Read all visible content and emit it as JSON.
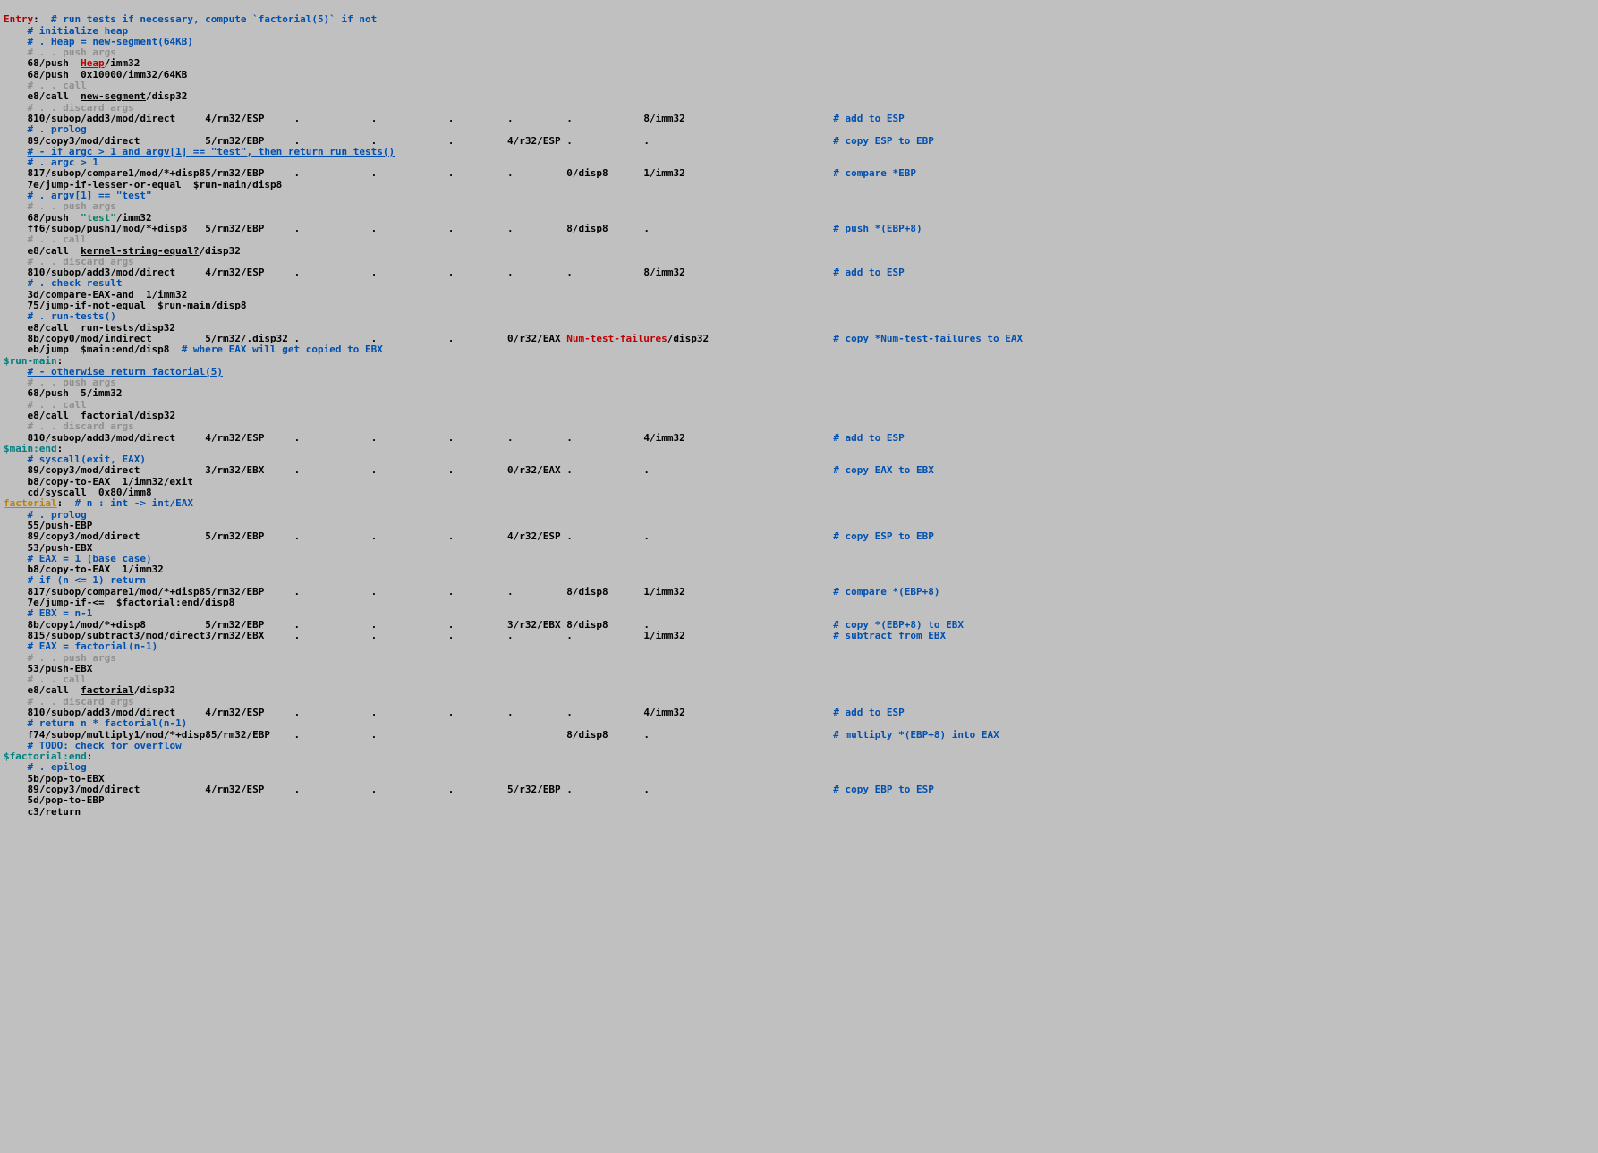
{
  "colors": {
    "label_red": "#b00000",
    "label_teal": "#008080",
    "label_orange": "#c08000",
    "comment_blue": "#0050b0",
    "comment_blue_ul": "#0050b0",
    "comment_gray": "#909090",
    "link": "#0050b0",
    "link_red": "#c00000",
    "black": "#000000",
    "str": "#008060",
    "bg": "#c0c0c0"
  },
  "cols": [
    0,
    2,
    11,
    34,
    49,
    62,
    75,
    85,
    95,
    108,
    123,
    140
  ],
  "lines": [
    [
      [
        "Entry",
        "label_red"
      ],
      [
        ":",
        "black"
      ],
      [
        "  ",
        "black"
      ],
      [
        "# run tests if necessary, compute `factorial(5)` if not",
        "comment_blue"
      ]
    ],
    [
      [
        "    ",
        "black"
      ],
      [
        "# initialize heap",
        "comment_blue"
      ]
    ],
    [
      [
        "    ",
        "black"
      ],
      [
        "# . Heap = new-segment(64KB)",
        "comment_blue"
      ]
    ],
    [
      [
        "    ",
        "black"
      ],
      [
        "# . . push args",
        "comment_gray"
      ]
    ],
    [
      [
        "    68/push  ",
        "black"
      ],
      [
        "Heap",
        "link_red",
        "ul"
      ],
      [
        "/imm32",
        "black"
      ]
    ],
    [
      [
        "    68/push  0x10000/imm32/64KB",
        "black"
      ]
    ],
    [
      [
        "    ",
        "black"
      ],
      [
        "# . . call",
        "comment_gray"
      ]
    ],
    [
      [
        "    e8/call  ",
        "black"
      ],
      [
        "new-segment",
        "black",
        "ul"
      ],
      [
        "/disp32",
        "black"
      ]
    ],
    [
      [
        "    ",
        "black"
      ],
      [
        "# . . discard args",
        "comment_gray"
      ]
    ],
    {
      "cells": {
        "0": "    81",
        "1": "0/subop/add",
        "2": "3/mod/direct",
        "3": "4/rm32/ESP",
        "4": ".",
        "5": ".",
        "6": ".",
        "7": ".",
        "8": ".",
        "9": "8/imm32"
      },
      "cmt": "# add to ESP"
    },
    [
      [
        "",
        "black"
      ]
    ],
    [
      [
        "    ",
        "black"
      ],
      [
        "# . prolog",
        "comment_blue"
      ]
    ],
    {
      "cells": {
        "0": "    89/copy",
        "2": "3/mod/direct",
        "3": "5/rm32/EBP",
        "4": ".",
        "5": ".",
        "6": ".",
        "7": "4/r32/ESP",
        "8": ".",
        "9": "."
      },
      "cmt": "# copy ESP to EBP"
    },
    [
      [
        "    ",
        "black"
      ],
      [
        "# - if argc > 1 and argv[1] == \"test\", then return run tests()",
        "comment_blue_ul",
        "ul"
      ]
    ],
    [
      [
        "    ",
        "black"
      ],
      [
        "# . argc > 1",
        "comment_blue"
      ]
    ],
    {
      "cells": {
        "0": "    81",
        "1": "7/subop/compare",
        "2": "1/mod/*+disp8",
        "3": "5/rm32/EBP",
        "4": ".",
        "5": ".",
        "6": ".",
        "7": ".",
        "8": "0/disp8",
        "9": "1/imm32"
      },
      "cmt": "# compare *EBP"
    },
    [
      [
        "    7e/jump-if-lesser-or-equal  $run-main/disp8",
        "black"
      ]
    ],
    [
      [
        "    ",
        "black"
      ],
      [
        "# . argv[1] == \"test\"",
        "comment_blue"
      ]
    ],
    [
      [
        "    ",
        "black"
      ],
      [
        "# . . push args",
        "comment_gray"
      ]
    ],
    [
      [
        "    68/push  ",
        "black"
      ],
      [
        "\"test\"",
        "str"
      ],
      [
        "/imm32",
        "black"
      ]
    ],
    {
      "cells": {
        "0": "    ff",
        "1": "6/subop/push",
        "2": "1/mod/*+disp8",
        "3": "5/rm32/EBP",
        "4": ".",
        "5": ".",
        "6": ".",
        "7": ".",
        "8": "8/disp8",
        "9": "."
      },
      "cmt": "# push *(EBP+8)"
    },
    [
      [
        "    ",
        "black"
      ],
      [
        "# . . call",
        "comment_gray"
      ]
    ],
    [
      [
        "    e8/call  ",
        "black"
      ],
      [
        "kernel-string-equal?",
        "black",
        "ul"
      ],
      [
        "/disp32",
        "black"
      ]
    ],
    [
      [
        "    ",
        "black"
      ],
      [
        "# . . discard args",
        "comment_gray"
      ]
    ],
    {
      "cells": {
        "0": "    81",
        "1": "0/subop/add",
        "2": "3/mod/direct",
        "3": "4/rm32/ESP",
        "4": ".",
        "5": ".",
        "6": ".",
        "7": ".",
        "8": ".",
        "9": "8/imm32"
      },
      "cmt": "# add to ESP"
    },
    [
      [
        "    ",
        "black"
      ],
      [
        "# . check result",
        "comment_blue"
      ]
    ],
    [
      [
        "    3d/compare-EAX-and  1/imm32",
        "black"
      ]
    ],
    [
      [
        "    75/jump-if-not-equal  $run-main/disp8",
        "black"
      ]
    ],
    [
      [
        "    ",
        "black"
      ],
      [
        "# . run-tests()",
        "comment_blue"
      ]
    ],
    [
      [
        "    e8/call  run-tests/disp32",
        "black"
      ]
    ],
    {
      "cells": {
        "0": "    8b/copy",
        "2": "0/mod/indirect",
        "3": "5/rm32/.disp32",
        "4": ".",
        "5": ".",
        "6": ".",
        "7": "0/r32/EAX",
        "8": [
          "Num-test-failures",
          "/disp32"
        ],
        "9": ""
      },
      "cmt": "# copy *Num-test-failures to EAX"
    },
    [
      [
        "    eb/jump  $main:end/disp8  ",
        "black"
      ],
      [
        "# where EAX will get copied to EBX",
        "comment_blue"
      ]
    ],
    [
      [
        "$run-main",
        "label_teal"
      ],
      [
        ":",
        "black"
      ]
    ],
    [
      [
        "    ",
        "black"
      ],
      [
        "# - otherwise return factorial(5)",
        "comment_blue_ul",
        "ul"
      ]
    ],
    [
      [
        "    ",
        "black"
      ],
      [
        "# . . push args",
        "comment_gray"
      ]
    ],
    [
      [
        "    68/push  5/imm32",
        "black"
      ]
    ],
    [
      [
        "    ",
        "black"
      ],
      [
        "# . . call",
        "comment_gray"
      ]
    ],
    [
      [
        "    e8/call  ",
        "black"
      ],
      [
        "factorial",
        "black",
        "ul"
      ],
      [
        "/disp32",
        "black"
      ]
    ],
    [
      [
        "    ",
        "black"
      ],
      [
        "# . . discard args",
        "comment_gray"
      ]
    ],
    {
      "cells": {
        "0": "    81",
        "1": "0/subop/add",
        "2": "3/mod/direct",
        "3": "4/rm32/ESP",
        "4": ".",
        "5": ".",
        "6": ".",
        "7": ".",
        "8": ".",
        "9": "4/imm32"
      },
      "cmt": "# add to ESP"
    },
    [
      [
        "$main:end",
        "label_teal"
      ],
      [
        ":",
        "black"
      ]
    ],
    [
      [
        "    ",
        "black"
      ],
      [
        "# syscall(exit, EAX)",
        "comment_blue"
      ]
    ],
    {
      "cells": {
        "0": "    89/copy",
        "2": "3/mod/direct",
        "3": "3/rm32/EBX",
        "4": ".",
        "5": ".",
        "6": ".",
        "7": "0/r32/EAX",
        "8": ".",
        "9": "."
      },
      "cmt": "# copy EAX to EBX"
    },
    [
      [
        "    b8/copy-to-EAX  1/imm32/exit",
        "black"
      ]
    ],
    [
      [
        "    cd/syscall  0x80/imm8",
        "black"
      ]
    ],
    [
      [
        "",
        "black"
      ]
    ],
    [
      [
        "factorial",
        "label_orange",
        "ul"
      ],
      [
        ":",
        "black"
      ],
      [
        "  ",
        "black"
      ],
      [
        "# n : int -> int/EAX",
        "comment_blue"
      ]
    ],
    [
      [
        "    ",
        "black"
      ],
      [
        "# . prolog",
        "comment_blue"
      ]
    ],
    [
      [
        "    55/push-EBP",
        "black"
      ]
    ],
    {
      "cells": {
        "0": "    89/copy",
        "2": "3/mod/direct",
        "3": "5/rm32/EBP",
        "4": ".",
        "5": ".",
        "6": ".",
        "7": "4/r32/ESP",
        "8": ".",
        "9": "."
      },
      "cmt": "# copy ESP to EBP"
    },
    [
      [
        "    53/push-EBX",
        "black"
      ]
    ],
    [
      [
        "    ",
        "black"
      ],
      [
        "# EAX = 1 (base case)",
        "comment_blue"
      ]
    ],
    [
      [
        "    b8/copy-to-EAX  1/imm32",
        "black"
      ]
    ],
    [
      [
        "    ",
        "black"
      ],
      [
        "# if (n <= 1) return",
        "comment_blue"
      ]
    ],
    {
      "cells": {
        "0": "    81",
        "1": "7/subop/compare",
        "2": "1/mod/*+disp8",
        "3": "5/rm32/EBP",
        "4": ".",
        "5": ".",
        "6": ".",
        "7": ".",
        "8": "8/disp8",
        "9": "1/imm32"
      },
      "cmt": "# compare *(EBP+8)"
    },
    [
      [
        "    7e/jump-if-<=  $factorial:end/disp8",
        "black"
      ]
    ],
    [
      [
        "    ",
        "black"
      ],
      [
        "# EBX = n-1",
        "comment_blue"
      ]
    ],
    {
      "cells": {
        "0": "    8b/copy",
        "2": "1/mod/*+disp8",
        "3": "5/rm32/EBP",
        "4": ".",
        "5": ".",
        "6": ".",
        "7": "3/r32/EBX",
        "8": "8/disp8",
        "9": "."
      },
      "cmt": "# copy *(EBP+8) to EBX"
    },
    {
      "cells": {
        "0": "    81",
        "1": "5/subop/subtract",
        "2": "3/mod/direct",
        "3": "3/rm32/EBX",
        "4": ".",
        "5": ".",
        "6": ".",
        "7": ".",
        "8": ".",
        "9": "1/imm32"
      },
      "cmt": "# subtract from EBX"
    },
    [
      [
        "    ",
        "black"
      ],
      [
        "# EAX = factorial(n-1)",
        "comment_blue"
      ]
    ],
    [
      [
        "    ",
        "black"
      ],
      [
        "# . . push args",
        "comment_gray"
      ]
    ],
    [
      [
        "    53/push-EBX",
        "black"
      ]
    ],
    [
      [
        "    ",
        "black"
      ],
      [
        "# . . call",
        "comment_gray"
      ]
    ],
    [
      [
        "    e8/call  ",
        "black"
      ],
      [
        "factorial",
        "black",
        "ul"
      ],
      [
        "/disp32",
        "black"
      ]
    ],
    [
      [
        "    ",
        "black"
      ],
      [
        "# . . discard args",
        "comment_gray"
      ]
    ],
    {
      "cells": {
        "0": "    81",
        "1": "0/subop/add",
        "2": "3/mod/direct",
        "3": "4/rm32/ESP",
        "4": ".",
        "5": ".",
        "6": ".",
        "7": ".",
        "8": ".",
        "9": "4/imm32"
      },
      "cmt": "# add to ESP"
    },
    [
      [
        "    ",
        "black"
      ],
      [
        "# return n * factorial(n-1)",
        "comment_blue"
      ]
    ],
    {
      "cells": {
        "0": "    f7",
        "1": "4/subop/multiply",
        "2": "1/mod/*+disp8",
        "3": "5/rm32/EBP",
        "4": ".",
        "5": ".",
        "7": "",
        "8": "8/disp8",
        "9": "."
      },
      "cmt": "# multiply *(EBP+8) into EAX"
    },
    [
      [
        "    ",
        "black"
      ],
      [
        "# TODO: check for overflow",
        "comment_blue"
      ]
    ],
    [
      [
        "$factorial:end",
        "label_teal"
      ],
      [
        ":",
        "black"
      ]
    ],
    [
      [
        "    ",
        "black"
      ],
      [
        "# . epilog",
        "comment_blue"
      ]
    ],
    [
      [
        "    5b/pop-to-EBX",
        "black"
      ]
    ],
    {
      "cells": {
        "0": "    89/copy",
        "2": "3/mod/direct",
        "3": "4/rm32/ESP",
        "4": ".",
        "5": ".",
        "6": ".",
        "7": "5/r32/EBP",
        "8": ".",
        "9": "."
      },
      "cmt": "# copy EBP to ESP"
    },
    [
      [
        "    5d/pop-to-EBP",
        "black"
      ]
    ],
    [
      [
        "    c3/return",
        "black"
      ]
    ]
  ]
}
